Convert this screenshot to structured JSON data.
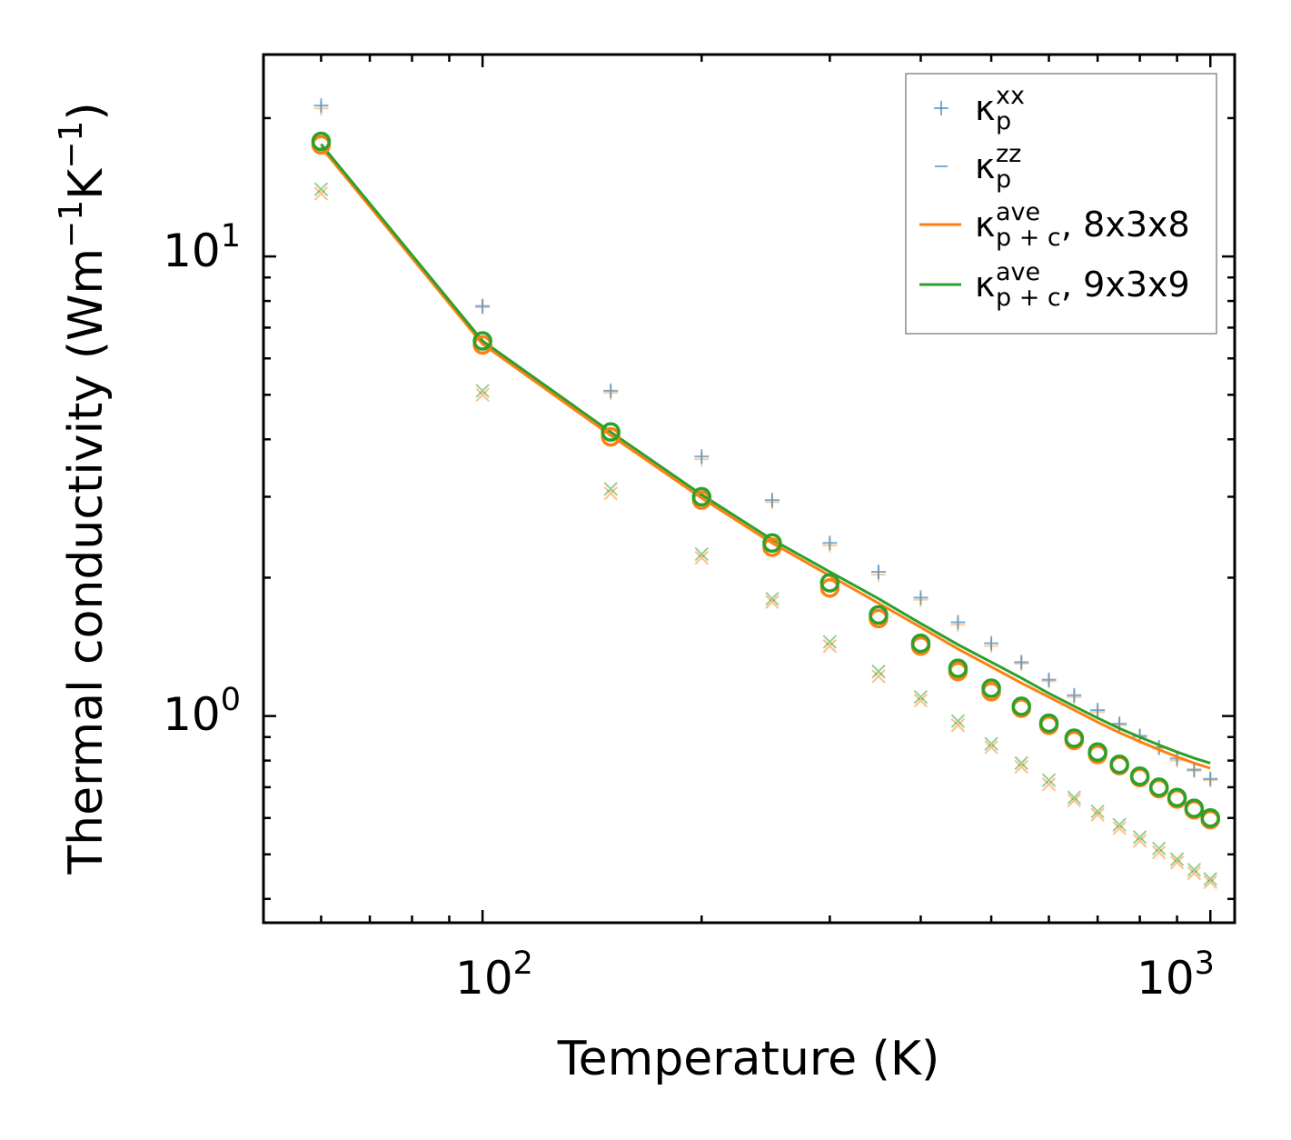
{
  "chart_data": {
    "type": "scatter",
    "scale": {
      "x": "log",
      "y": "log"
    },
    "xlim": [
      50,
      1080
    ],
    "ylim": [
      0.355,
      27.5
    ],
    "xlabel": "Temperature (K)",
    "ylabel": {
      "base": "Thermal conductivity (Wm",
      "exp1": "−1",
      "mid": "K",
      "exp2": "−1",
      "end": ")"
    },
    "x_ticks": [
      {
        "value": 100,
        "base": "10",
        "exp": "2"
      },
      {
        "value": 1000,
        "base": "10",
        "exp": "3"
      }
    ],
    "y_ticks": [
      {
        "value": 1,
        "base": "10",
        "exp": "0"
      },
      {
        "value": 10,
        "base": "10",
        "exp": "1"
      }
    ],
    "x": [
      60,
      100,
      150,
      200,
      250,
      300,
      350,
      400,
      450,
      500,
      550,
      600,
      650,
      700,
      750,
      800,
      850,
      900,
      950,
      1000
    ],
    "series": [
      {
        "name": "kappa_p_xx_8x3x8",
        "marker": "+",
        "color": "#ffbb78",
        "opacity": 0.75,
        "values": [
          21.0,
          7.75,
          5.05,
          3.62,
          2.92,
          2.35,
          2.03,
          1.79,
          1.58,
          1.42,
          1.3,
          1.19,
          1.1,
          1.02,
          0.955,
          0.9,
          0.85,
          0.8,
          0.76,
          0.725
        ]
      },
      {
        "name": "kappa_p_xx_9x3x9",
        "marker": "+",
        "color": "#1f77b4",
        "opacity": 0.6,
        "values": [
          21.3,
          7.8,
          5.1,
          3.67,
          2.95,
          2.38,
          2.06,
          1.81,
          1.6,
          1.44,
          1.31,
          1.2,
          1.11,
          1.03,
          0.962,
          0.905,
          0.855,
          0.808,
          0.765,
          0.73
        ]
      },
      {
        "name": "kappa_p_zz_8x3x8",
        "marker": "x",
        "color": "#ff7f0e",
        "opacity": 0.5,
        "values": [
          13.7,
          5.0,
          3.05,
          2.21,
          1.77,
          1.42,
          1.22,
          1.08,
          0.955,
          0.855,
          0.775,
          0.71,
          0.655,
          0.61,
          0.57,
          0.535,
          0.505,
          0.48,
          0.455,
          0.435
        ]
      },
      {
        "name": "kappa_p_zz_9x3x9",
        "marker": "x",
        "color": "#2ca02c",
        "opacity": 0.5,
        "values": [
          14.0,
          5.1,
          3.12,
          2.25,
          1.8,
          1.45,
          1.25,
          1.1,
          0.975,
          0.87,
          0.79,
          0.725,
          0.665,
          0.62,
          0.58,
          0.545,
          0.515,
          0.488,
          0.463,
          0.442
        ]
      },
      {
        "name": "kappa_p_ave_8x3x8",
        "marker": "o",
        "color": "#ff7f0e",
        "opacity": 1,
        "values": [
          17.5,
          6.42,
          4.05,
          2.95,
          2.33,
          1.9,
          1.63,
          1.42,
          1.25,
          1.13,
          1.04,
          0.955,
          0.885,
          0.825,
          0.78,
          0.735,
          0.695,
          0.66,
          0.625,
          0.595
        ]
      },
      {
        "name": "kappa_p_ave_9x3x9",
        "marker": "o",
        "color": "#2ca02c",
        "opacity": 1,
        "values": [
          17.8,
          6.55,
          4.15,
          3.0,
          2.38,
          1.95,
          1.66,
          1.44,
          1.27,
          1.15,
          1.05,
          0.965,
          0.895,
          0.835,
          0.785,
          0.74,
          0.7,
          0.665,
          0.63,
          0.6
        ]
      },
      {
        "name": "kappa_p+c_ave_8x3x8",
        "marker": "line",
        "color": "#ff7f0e",
        "opacity": 1,
        "values": [
          17.3,
          6.45,
          4.08,
          2.98,
          2.38,
          2.02,
          1.76,
          1.56,
          1.4,
          1.28,
          1.18,
          1.1,
          1.03,
          0.97,
          0.92,
          0.88,
          0.845,
          0.815,
          0.79,
          0.77
        ]
      },
      {
        "name": "kappa_p+c_ave_9x3x9",
        "marker": "line",
        "color": "#2ca02c",
        "opacity": 1,
        "values": [
          17.55,
          6.55,
          4.15,
          3.03,
          2.42,
          2.06,
          1.8,
          1.59,
          1.43,
          1.31,
          1.21,
          1.12,
          1.05,
          0.99,
          0.94,
          0.9,
          0.865,
          0.835,
          0.81,
          0.79
        ]
      }
    ],
    "legend": {
      "placement": "top-right",
      "entries": [
        {
          "symbol": "+",
          "color": "#1f77b4",
          "kappa": "κ",
          "sub": "p",
          "sup": "xx",
          "suffix": ""
        },
        {
          "symbol": "-",
          "color": "#1f77b4",
          "kappa": "κ",
          "sub": "p",
          "sup": "zz",
          "suffix": ""
        },
        {
          "symbol": "line",
          "color": "#ff7f0e",
          "kappa": "κ",
          "sub": "p + c",
          "sup": "ave",
          "suffix": ", 8x3x8"
        },
        {
          "symbol": "line",
          "color": "#2ca02c",
          "kappa": "κ",
          "sub": "p + c",
          "sup": "ave",
          "suffix": ", 9x3x9"
        }
      ]
    },
    "colors": {
      "axis": "#000000",
      "legend_frame": "#8c8c8c",
      "orange": "#ff7f0e",
      "green": "#2ca02c",
      "blue": "#1f77b4"
    }
  }
}
